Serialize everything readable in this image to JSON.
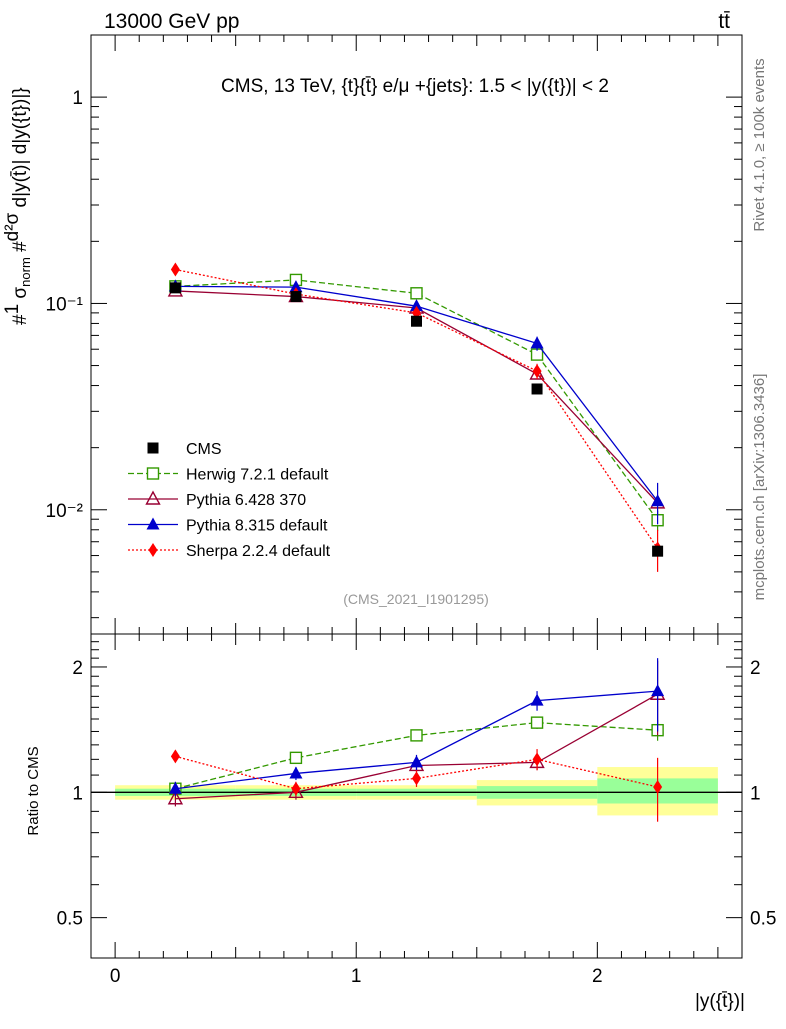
{
  "header": {
    "left": "13000 GeV pp",
    "right": "tt̄"
  },
  "side_labels": {
    "rivet": "Rivet 4.1.0, ≥ 100k events",
    "mcplots": "mcplots.cern.ch [arXiv:1306.3436]"
  },
  "chart_data": [
    {
      "type": "line",
      "title": "CMS, 13 TeV, {t}{t̄} e/μ +{jets}: 1.5 < |y({t})| < 2",
      "watermark": "(CMS_2021_I1901295)",
      "yscale": "log",
      "ylim": [
        0.0025,
        2.0
      ],
      "xlim": [
        -0.1,
        2.6
      ],
      "ylabel_parts": {
        "prefix": "#",
        "one": "1",
        "sigma": "σ",
        "sigma_sub": "norm",
        "hash2": "#",
        "dsigma": "d²σ",
        "dy": "d|y(t̄",
        "tail": ")| d|y({t})|}"
      },
      "y_ticks": [
        {
          "value": 1,
          "label": "1"
        },
        {
          "value": 0.1,
          "label": "10⁻¹"
        },
        {
          "value": 0.01,
          "label": "10⁻²"
        }
      ],
      "x": [
        0.25,
        0.75,
        1.25,
        1.75,
        2.25
      ],
      "x_bin_edges": [
        0,
        0.5,
        1.0,
        1.5,
        2.0,
        2.5
      ],
      "series": [
        {
          "name": "CMS",
          "color": "#000000",
          "marker": "square-filled",
          "line": "none",
          "values": [
            0.119,
            0.108,
            0.082,
            0.0385,
            0.0063
          ]
        },
        {
          "name": "Herwig 7.2.1 default",
          "color": "#339900",
          "marker": "square-open",
          "line": "dashed",
          "values": [
            0.121,
            0.13,
            0.112,
            0.0565,
            0.0089
          ],
          "errors": [
            0.004,
            0.004,
            0.004,
            0.003,
            0.001
          ]
        },
        {
          "name": "Pythia 6.428 370",
          "color": "#990033",
          "marker": "triangle-open",
          "line": "solid",
          "values": [
            0.115,
            0.108,
            0.095,
            0.0455,
            0.0108
          ]
        },
        {
          "name": "Pythia 8.315 default",
          "color": "#0000cc",
          "marker": "triangle-filled",
          "line": "solid",
          "values": [
            0.121,
            0.12,
            0.097,
            0.064,
            0.011
          ],
          "errors": [
            0.004,
            0.004,
            0.004,
            0.005,
            0.0025
          ]
        },
        {
          "name": "Sherpa 2.2.4 default",
          "color": "#ff0000",
          "marker": "diamond-filled",
          "line": "dotted",
          "values": [
            0.146,
            0.111,
            0.09,
            0.047,
            0.0065
          ],
          "errors": [
            0.005,
            0.005,
            0.005,
            0.004,
            0.0015
          ]
        }
      ]
    },
    {
      "type": "line",
      "title": "",
      "yscale": "log",
      "ylim": [
        0.4,
        2.4
      ],
      "ylabel": "Ratio to CMS",
      "xlabel": "|y({t̄})|",
      "y_ticks": [
        {
          "value": 2,
          "label": "2"
        },
        {
          "value": 1,
          "label": "1"
        },
        {
          "value": 0.5,
          "label": "0.5"
        }
      ],
      "x_ticks": [
        {
          "value": 0,
          "label": "0"
        },
        {
          "value": 1,
          "label": "1"
        },
        {
          "value": 2,
          "label": "2"
        }
      ],
      "uncertainty_bands": {
        "yellow": [
          [
            0.96,
            1.04
          ],
          [
            0.96,
            1.04
          ],
          [
            0.96,
            1.04
          ],
          [
            0.93,
            1.07
          ],
          [
            0.88,
            1.15
          ]
        ],
        "green": [
          [
            0.98,
            1.02
          ],
          [
            0.98,
            1.02
          ],
          [
            0.98,
            1.02
          ],
          [
            0.965,
            1.035
          ],
          [
            0.94,
            1.08
          ]
        ]
      },
      "series": [
        {
          "name": "Herwig 7.2.1 default",
          "values": [
            1.02,
            1.21,
            1.37,
            1.47,
            1.41
          ],
          "errors": [
            0.03,
            0.04,
            0.04,
            0.05,
            0.08
          ]
        },
        {
          "name": "Pythia 6.428 370",
          "values": [
            0.965,
            1.0,
            1.16,
            1.18,
            1.72
          ],
          "errors": [
            0.04,
            0.04,
            0.04,
            0.05,
            0.35
          ]
        },
        {
          "name": "Pythia 8.315 default",
          "values": [
            1.02,
            1.11,
            1.18,
            1.66,
            1.75
          ],
          "errors": [
            0.04,
            0.04,
            0.05,
            0.09,
            0.35
          ]
        },
        {
          "name": "Sherpa 2.2.4 default",
          "values": [
            1.22,
            1.02,
            1.08,
            1.2,
            1.03
          ],
          "errors": [
            0.04,
            0.04,
            0.05,
            0.07,
            0.18
          ]
        }
      ]
    }
  ]
}
